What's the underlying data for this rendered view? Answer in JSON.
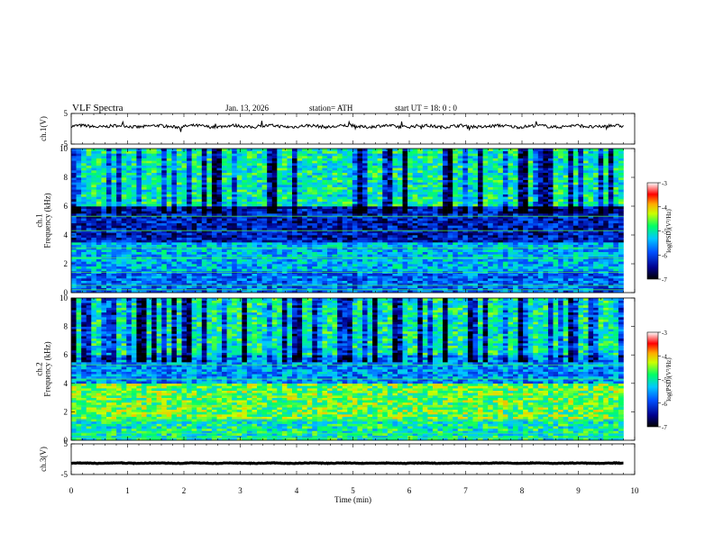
{
  "header": {
    "title": "VLF  Spectra",
    "date": "Jan. 13, 2026",
    "station": "station= ATH",
    "start_ut": "start  UT  =   18: 0  : 0"
  },
  "colors": {
    "spectrogram_low": "#00008c",
    "spectrogram_mid": "#00ff66",
    "spectrogram_high": "#ff0000",
    "spectrogram_top": "#ffffff",
    "waveform": "#000000"
  },
  "chart_data": [
    {
      "type": "line",
      "name": "ch1-waveform",
      "ylabel": "ch.1(V)",
      "ylim": [
        -5,
        5
      ],
      "yticks": [
        "5",
        "-5"
      ],
      "xlim": [
        0,
        10
      ],
      "x_extent_min": 9.8,
      "approx_level_V": 0.8,
      "noise_amplitude_V": 0.5
    },
    {
      "type": "heatmap",
      "name": "ch1-spectrogram",
      "ylabel": "ch.1\nFrequency (kHz)",
      "ylim": [
        0,
        10
      ],
      "yticks": [
        "0",
        "2",
        "4",
        "6",
        "8",
        "10"
      ],
      "xlim": [
        0,
        10
      ],
      "x_extent_min": 9.8,
      "colorbar": {
        "label": "log(PSD)(V²/Hz)",
        "range": [
          -7,
          -3
        ],
        "ticks": [
          "-3",
          "-4",
          "-5",
          "-6",
          "-7"
        ]
      },
      "bands": [
        {
          "f_kHz": [
            0,
            1.5
          ],
          "log_psd": -5.8
        },
        {
          "f_kHz": [
            1.5,
            3.5
          ],
          "log_psd": -5.4
        },
        {
          "f_kHz": [
            3.5,
            6
          ],
          "log_psd": -6.3
        },
        {
          "f_kHz": [
            6,
            10
          ],
          "log_psd": -5.0
        }
      ]
    },
    {
      "type": "heatmap",
      "name": "ch2-spectrogram",
      "ylabel": "ch.2\nFrequency (kHz)",
      "ylim": [
        0,
        10
      ],
      "yticks": [
        "0",
        "2",
        "4",
        "6",
        "8",
        "10"
      ],
      "xlim": [
        0,
        10
      ],
      "x_extent_min": 9.8,
      "colorbar": {
        "label": "log(PSD)(V²/Hz)",
        "range": [
          -7,
          -3
        ],
        "ticks": [
          "-3",
          "-4",
          "-5",
          "-6",
          "-7"
        ]
      },
      "bands": [
        {
          "f_kHz": [
            0,
            1.5
          ],
          "log_psd": -5.0
        },
        {
          "f_kHz": [
            1.5,
            4
          ],
          "log_psd": -4.6
        },
        {
          "f_kHz": [
            4,
            6
          ],
          "log_psd": -5.6
        },
        {
          "f_kHz": [
            6,
            10
          ],
          "log_psd": -5.0
        }
      ]
    },
    {
      "type": "line",
      "name": "ch3-waveform",
      "ylabel": "ch.3(V)",
      "ylim": [
        -5,
        5
      ],
      "yticks": [
        "5",
        "-5"
      ],
      "xlim": [
        0,
        10
      ],
      "x_extent_min": 9.8,
      "approx_level_V": -1.3,
      "noise_amplitude_V": 0.1
    }
  ],
  "x_axis": {
    "label": "Time  (min)",
    "ticks": [
      "0",
      "1",
      "2",
      "3",
      "4",
      "5",
      "6",
      "7",
      "8",
      "9",
      "10"
    ]
  }
}
